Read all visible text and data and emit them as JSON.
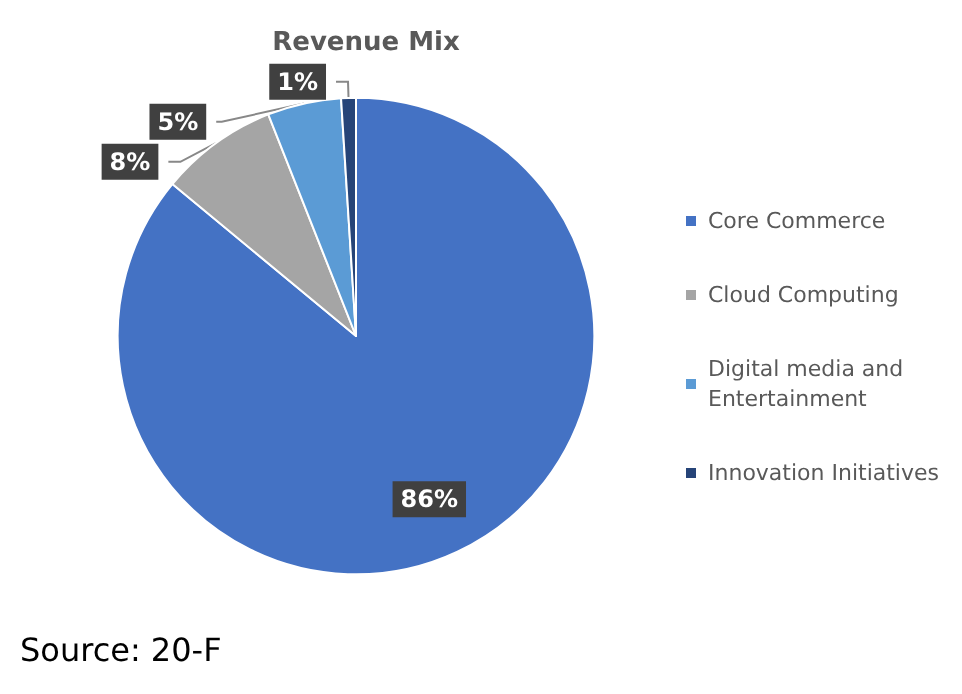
{
  "chart_data": {
    "type": "pie",
    "title": "Revenue Mix",
    "categories": [
      "Core Commerce",
      "Cloud Computing",
      "Digital media and Entertainment",
      "Innovation Initiatives"
    ],
    "values": [
      86,
      8,
      5,
      1
    ],
    "value_labels": [
      "86%",
      "8%",
      "5%",
      "1%"
    ],
    "colors": [
      "#4472c4",
      "#a5a5a5",
      "#5b9bd5",
      "#264478"
    ],
    "legend": "right",
    "annotations": [
      "Source: 20-F"
    ]
  }
}
